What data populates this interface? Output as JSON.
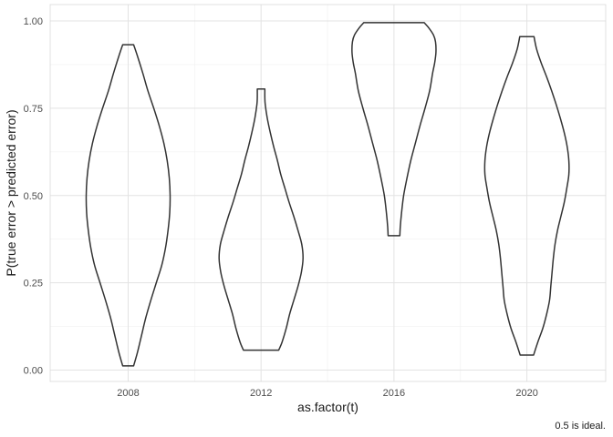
{
  "chart_data": {
    "type": "violin",
    "title": "",
    "xlabel": "as.factor(t)",
    "ylabel": "P(true error > predicted error)",
    "caption": "0.5 is ideal.",
    "categories": [
      "2008",
      "2012",
      "2016",
      "2020"
    ],
    "ylim": [
      0,
      1
    ],
    "y_ticks": [
      0.0,
      0.25,
      0.5,
      0.75,
      1.0
    ],
    "y_tick_labels": [
      "0.00",
      "0.25",
      "0.50",
      "0.75",
      "1.00"
    ],
    "grid": true,
    "outline_color": "#333333",
    "violins": [
      {
        "category": "2008",
        "range": [
          0.012,
          0.932
        ],
        "profile": [
          [
            0.012,
            0.13
          ],
          [
            0.05,
            0.22
          ],
          [
            0.1,
            0.32
          ],
          [
            0.15,
            0.42
          ],
          [
            0.2,
            0.54
          ],
          [
            0.25,
            0.67
          ],
          [
            0.3,
            0.8
          ],
          [
            0.35,
            0.89
          ],
          [
            0.4,
            0.95
          ],
          [
            0.45,
            0.99
          ],
          [
            0.5,
            1.0
          ],
          [
            0.55,
            0.98
          ],
          [
            0.6,
            0.93
          ],
          [
            0.65,
            0.85
          ],
          [
            0.7,
            0.74
          ],
          [
            0.75,
            0.61
          ],
          [
            0.8,
            0.47
          ],
          [
            0.85,
            0.35
          ],
          [
            0.9,
            0.22
          ],
          [
            0.932,
            0.13
          ]
        ]
      },
      {
        "category": "2012",
        "range": [
          0.057,
          0.805
        ],
        "profile": [
          [
            0.057,
            0.42
          ],
          [
            0.08,
            0.5
          ],
          [
            0.12,
            0.6
          ],
          [
            0.16,
            0.68
          ],
          [
            0.2,
            0.78
          ],
          [
            0.24,
            0.88
          ],
          [
            0.28,
            0.96
          ],
          [
            0.32,
            1.0
          ],
          [
            0.36,
            0.97
          ],
          [
            0.4,
            0.88
          ],
          [
            0.44,
            0.78
          ],
          [
            0.48,
            0.67
          ],
          [
            0.52,
            0.57
          ],
          [
            0.56,
            0.47
          ],
          [
            0.6,
            0.39
          ],
          [
            0.64,
            0.3
          ],
          [
            0.68,
            0.22
          ],
          [
            0.72,
            0.15
          ],
          [
            0.76,
            0.1
          ],
          [
            0.78,
            0.09
          ],
          [
            0.805,
            0.09
          ]
        ]
      },
      {
        "category": "2016",
        "range": [
          0.385,
          0.995
        ],
        "profile": [
          [
            0.385,
            0.14
          ],
          [
            0.41,
            0.15
          ],
          [
            0.45,
            0.18
          ],
          [
            0.5,
            0.23
          ],
          [
            0.55,
            0.31
          ],
          [
            0.6,
            0.4
          ],
          [
            0.65,
            0.51
          ],
          [
            0.7,
            0.62
          ],
          [
            0.75,
            0.74
          ],
          [
            0.8,
            0.85
          ],
          [
            0.85,
            0.92
          ],
          [
            0.88,
            0.97
          ],
          [
            0.91,
            1.0
          ],
          [
            0.94,
            0.99
          ],
          [
            0.96,
            0.94
          ],
          [
            0.98,
            0.83
          ],
          [
            0.995,
            0.72
          ]
        ]
      },
      {
        "category": "2020",
        "range": [
          0.043,
          0.955
        ],
        "profile": [
          [
            0.043,
            0.16
          ],
          [
            0.08,
            0.26
          ],
          [
            0.12,
            0.38
          ],
          [
            0.16,
            0.47
          ],
          [
            0.2,
            0.54
          ],
          [
            0.24,
            0.57
          ],
          [
            0.28,
            0.6
          ],
          [
            0.32,
            0.63
          ],
          [
            0.36,
            0.67
          ],
          [
            0.4,
            0.73
          ],
          [
            0.44,
            0.81
          ],
          [
            0.48,
            0.89
          ],
          [
            0.52,
            0.95
          ],
          [
            0.56,
            1.0
          ],
          [
            0.6,
            1.0
          ],
          [
            0.64,
            0.96
          ],
          [
            0.68,
            0.89
          ],
          [
            0.72,
            0.8
          ],
          [
            0.76,
            0.7
          ],
          [
            0.8,
            0.59
          ],
          [
            0.84,
            0.47
          ],
          [
            0.88,
            0.34
          ],
          [
            0.92,
            0.23
          ],
          [
            0.955,
            0.17
          ]
        ]
      }
    ]
  }
}
